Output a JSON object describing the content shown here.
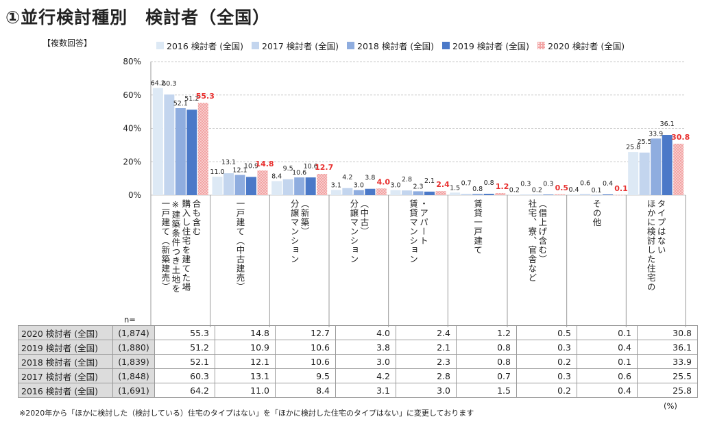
{
  "title": "①並行検討種別　検討者（全国）",
  "multi_answer_label": "【複数回答】",
  "chart_data": {
    "type": "bar",
    "ylim": [
      0,
      80
    ],
    "yticks": [
      "0%",
      "20%",
      "40%",
      "60%",
      "80%"
    ],
    "ytick_values": [
      0,
      20,
      40,
      60,
      80
    ],
    "grid": true,
    "legend_position": "top",
    "categories": [
      "購入し住宅を建てた場合も含む一戸建て（新築建売）※建築条件つき土地を",
      "一戸建て（中古建売）",
      "分譲マンション（新築）",
      "分譲マンション（中古）",
      "賃貸マンション・アパート",
      "賃貸一戸建て",
      "社宅、寮、官舎など（借上げ含む）",
      "その他",
      "ほかに検討した住宅のタイプはない"
    ],
    "category_columns": [
      [
        "合も含む",
        "購入し住宅を建てた場",
        "※建築条件つき土地を",
        "一戸建て（新築建売）"
      ],
      [
        "一戸建て（中古建売）"
      ],
      [
        "（新築）",
        "分譲マンション"
      ],
      [
        "（中古）",
        "分譲マンション"
      ],
      [
        "・アパート",
        "賃貸マンション"
      ],
      [
        "賃貸一戸建て"
      ],
      [
        "（借上げ含む）",
        "社宅、寮、官舎など"
      ],
      [
        "その他"
      ],
      [
        "タイプはない",
        "ほかに検討した住宅の"
      ]
    ],
    "series": [
      {
        "name": "2016 検討者 (全国)",
        "n": "(1,691)",
        "color": "#dde9f5",
        "values": [
          64.2,
          11.0,
          8.4,
          3.1,
          3.0,
          1.5,
          0.2,
          0.4,
          25.8
        ]
      },
      {
        "name": "2017 検討者 (全国)",
        "n": "(1,848)",
        "color": "#c3d5ee",
        "values": [
          60.3,
          13.1,
          9.5,
          4.2,
          2.8,
          0.7,
          0.3,
          0.6,
          25.5
        ]
      },
      {
        "name": "2018 検討者 (全国)",
        "n": "(1,839)",
        "color": "#8faddf",
        "values": [
          52.1,
          12.1,
          10.6,
          3.0,
          2.3,
          0.8,
          0.2,
          0.1,
          33.9
        ]
      },
      {
        "name": "2019 検討者 (全国)",
        "n": "(1,880)",
        "color": "#4b79c8",
        "values": [
          51.2,
          10.9,
          10.6,
          3.8,
          2.1,
          0.8,
          0.3,
          0.4,
          36.1
        ]
      },
      {
        "name": "2020 検討者 (全国)",
        "n": "(1,874)",
        "color": "#f2a3a3",
        "highlight_color": "#e8302f",
        "values": [
          55.3,
          14.8,
          12.7,
          4.0,
          2.4,
          1.2,
          0.5,
          0.1,
          30.8
        ]
      }
    ]
  },
  "table": {
    "n_label": "n=",
    "row_order": [
      4,
      3,
      2,
      1,
      0
    ]
  },
  "footnote": "※2020年から「ほかに検討した（検討している）住宅のタイプはない」を「ほかに検討した住宅のタイプはない」に変更しております",
  "unit": "(%)"
}
